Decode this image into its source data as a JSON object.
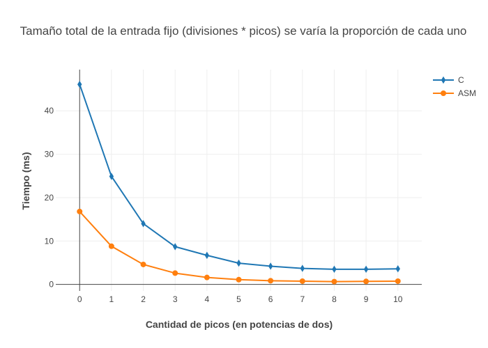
{
  "chart_data": {
    "type": "line",
    "title": "Tamaño total de la entrada fijo (divisiones * picos) se varía la proporción de cada uno",
    "xlabel": "Cantidad de picos (en potencias de dos)",
    "ylabel": "Tiempo (ms)",
    "x": [
      0,
      1,
      2,
      3,
      4,
      5,
      6,
      7,
      8,
      9,
      10
    ],
    "xlim": [
      -0.75,
      10.75
    ],
    "ylim": [
      -1.5,
      49.5
    ],
    "xticks": [
      0,
      1,
      2,
      3,
      4,
      5,
      6,
      7,
      8,
      9,
      10
    ],
    "yticks": [
      0,
      10,
      20,
      30,
      40
    ],
    "grid": true,
    "legend_position": "top-right",
    "series": [
      {
        "name": "C",
        "color": "#1f77b4",
        "marker": "diamond",
        "values": [
          46.1,
          24.9,
          14.0,
          8.7,
          6.7,
          4.9,
          4.2,
          3.7,
          3.5,
          3.5,
          3.6
        ]
      },
      {
        "name": "ASM",
        "color": "#ff7f0e",
        "marker": "circle",
        "values": [
          16.8,
          8.8,
          4.6,
          2.6,
          1.6,
          1.1,
          0.85,
          0.75,
          0.65,
          0.7,
          0.75
        ]
      }
    ]
  }
}
